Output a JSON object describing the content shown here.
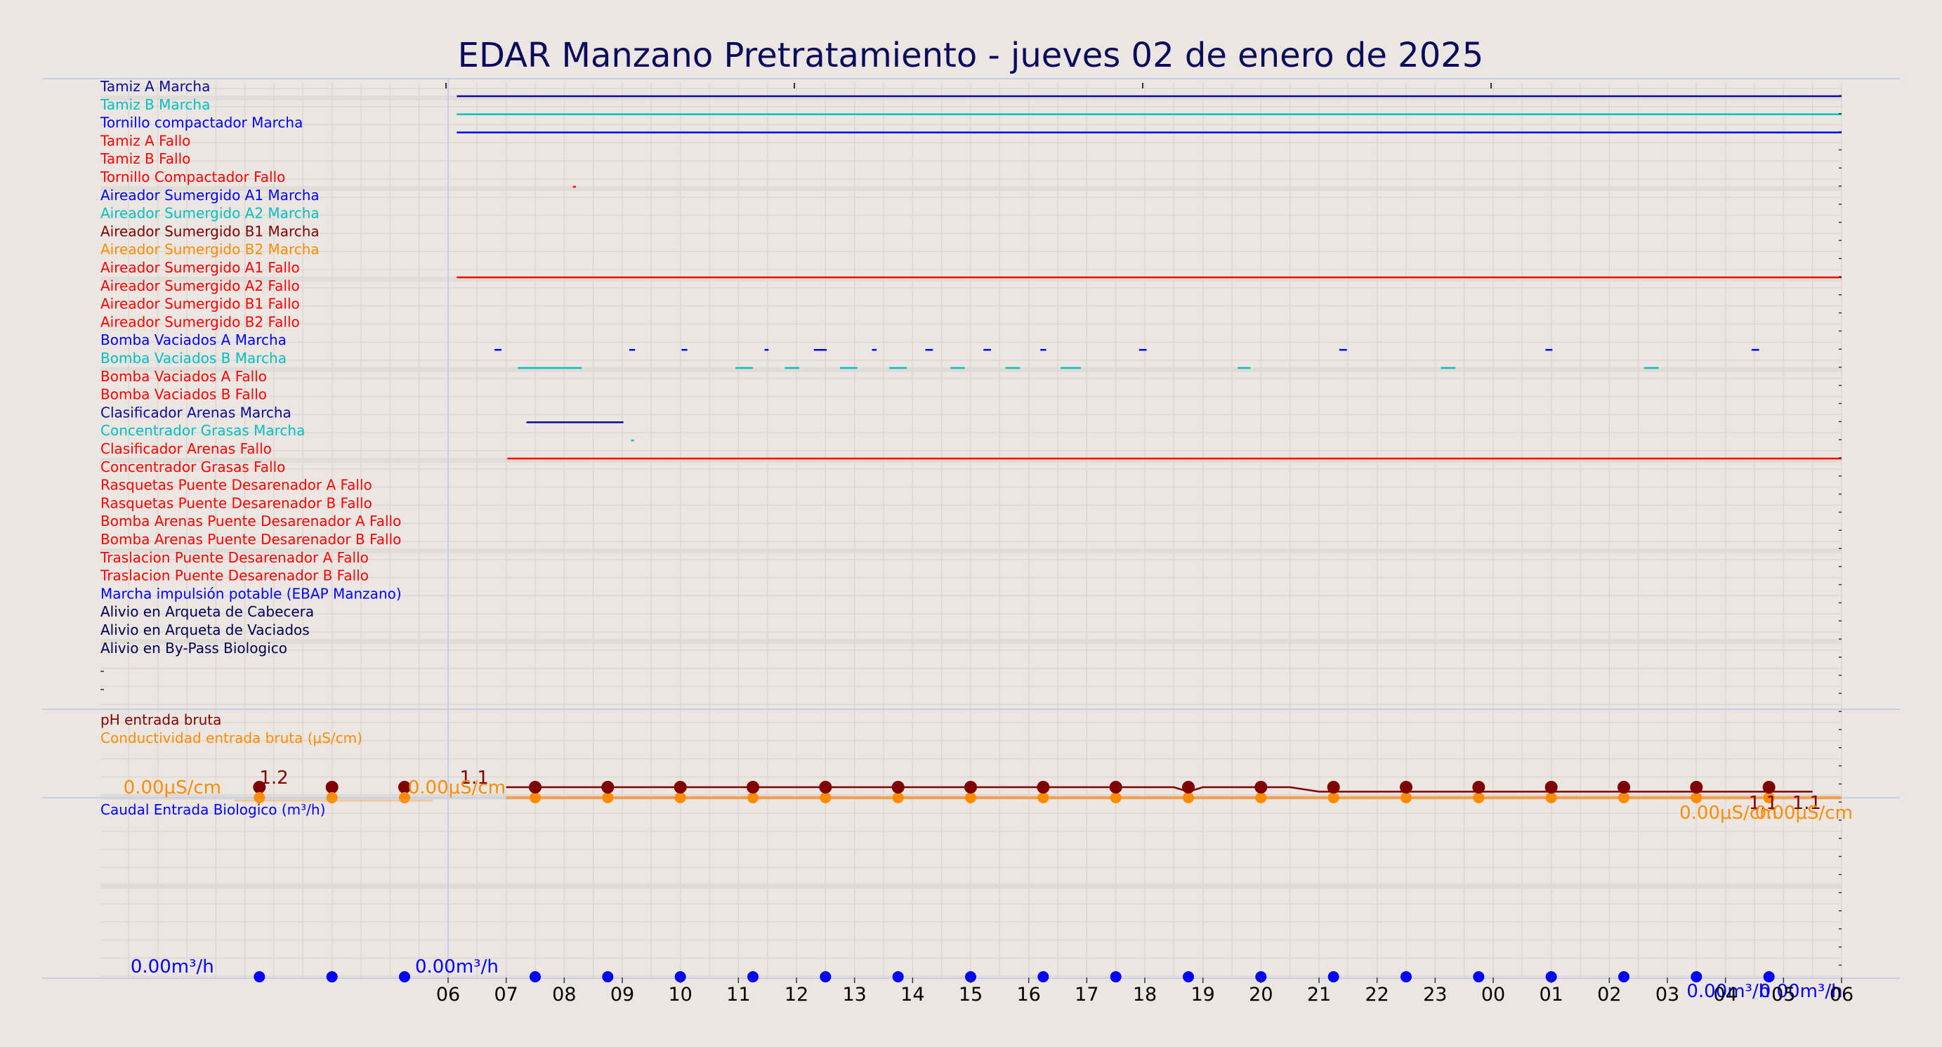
{
  "title": "EDAR Manzano Pretratamiento   -   jueves 02 de enero de 2025",
  "colors": {
    "background": "#ebe6e1",
    "title": "#0b0b5e",
    "navy": "#0a0a9a",
    "blue": "#0000ff",
    "cyan": "#00c0c0",
    "red": "#ff0000",
    "darkred": "#800000",
    "orange": "#ff8c00",
    "darknavy": "#000050",
    "grid": "#dcd7d3",
    "band": "#e0dcd8",
    "separator": "#c8cde6"
  },
  "chart_data": {
    "type": "line",
    "x_ticks": [
      "06",
      "07",
      "08",
      "09",
      "10",
      "11",
      "12",
      "13",
      "14",
      "15",
      "16",
      "17",
      "18",
      "19",
      "20",
      "21",
      "22",
      "23",
      "00",
      "01",
      "02",
      "03",
      "04",
      "05",
      "06"
    ],
    "x_range_hours": [
      6,
      30
    ],
    "digital_signals": [
      {
        "name": "Tamiz A Marcha",
        "color": "#0a0a9a",
        "on": [
          [
            6.15,
            30
          ]
        ]
      },
      {
        "name": "Tamiz B Marcha",
        "color": "#00c0c0",
        "on": [
          [
            6.15,
            30
          ]
        ]
      },
      {
        "name": "Tornillo compactador Marcha",
        "color": "#0000ff",
        "on": [
          [
            6.15,
            30
          ]
        ]
      },
      {
        "name": "Tamiz A Fallo",
        "color": "#ff0000",
        "on": []
      },
      {
        "name": "Tamiz B Fallo",
        "color": "#ff0000",
        "on": []
      },
      {
        "name": "Tornillo Compactador Fallo",
        "color": "#ff0000",
        "on": [
          [
            8.15,
            8.2
          ]
        ]
      },
      {
        "name": "Aireador Sumergido A1 Marcha",
        "color": "#0000ff",
        "on": []
      },
      {
        "name": "Aireador Sumergido A2 Marcha",
        "color": "#00c0c0",
        "on": []
      },
      {
        "name": "Aireador Sumergido B1 Marcha",
        "color": "#800000",
        "on": []
      },
      {
        "name": "Aireador Sumergido B2 Marcha",
        "color": "#ff8c00",
        "on": []
      },
      {
        "name": "Aireador Sumergido A1 Fallo",
        "color": "#ff0000",
        "on": [
          [
            6.15,
            30
          ]
        ]
      },
      {
        "name": "Aireador Sumergido A2 Fallo",
        "color": "#ff0000",
        "on": []
      },
      {
        "name": "Aireador Sumergido B1 Fallo",
        "color": "#ff0000",
        "on": []
      },
      {
        "name": "Aireador Sumergido B2 Fallo",
        "color": "#ff0000",
        "on": []
      },
      {
        "name": "Bomba Vaciados A Marcha",
        "color": "#0000ff",
        "on": [
          [
            6.8,
            6.92
          ],
          [
            9.12,
            9.22
          ],
          [
            10.02,
            10.12
          ],
          [
            11.45,
            11.52
          ],
          [
            12.3,
            12.52
          ],
          [
            13.3,
            13.38
          ],
          [
            14.22,
            14.35
          ],
          [
            15.22,
            15.35
          ],
          [
            16.2,
            16.3
          ],
          [
            17.9,
            18.03
          ],
          [
            21.35,
            21.48
          ],
          [
            24.9,
            25.02
          ],
          [
            28.45,
            28.58
          ]
        ]
      },
      {
        "name": "Bomba Vaciados B Marcha",
        "color": "#00c0c0",
        "on": [
          [
            7.2,
            8.3
          ],
          [
            10.95,
            11.25
          ],
          [
            11.8,
            12.05
          ],
          [
            12.75,
            13.05
          ],
          [
            13.6,
            13.9
          ],
          [
            14.65,
            14.9
          ],
          [
            15.6,
            15.85
          ],
          [
            16.55,
            16.9
          ],
          [
            19.6,
            19.82
          ],
          [
            23.1,
            23.35
          ],
          [
            26.6,
            26.85
          ]
        ]
      },
      {
        "name": "Bomba Vaciados A Fallo",
        "color": "#ff0000",
        "on": []
      },
      {
        "name": "Bomba Vaciados B Fallo",
        "color": "#ff0000",
        "on": []
      },
      {
        "name": "Clasificador Arenas Marcha",
        "color": "#0a0a9a",
        "on": [
          [
            7.35,
            9.02
          ]
        ]
      },
      {
        "name": "Concentrador Grasas Marcha",
        "color": "#00c0c0",
        "on": [
          [
            9.15,
            9.2
          ]
        ]
      },
      {
        "name": "Clasificador Arenas Fallo",
        "color": "#ff0000",
        "on": [
          [
            7.02,
            30
          ]
        ]
      },
      {
        "name": "Concentrador Grasas Fallo",
        "color": "#ff0000",
        "on": []
      },
      {
        "name": "Rasquetas Puente Desarenador A Fallo",
        "color": "#ff0000",
        "on": []
      },
      {
        "name": "Rasquetas Puente Desarenador B Fallo",
        "color": "#ff0000",
        "on": []
      },
      {
        "name": "Bomba Arenas Puente Desarenador A Fallo",
        "color": "#ff0000",
        "on": []
      },
      {
        "name": "Bomba Arenas Puente Desarenador B Fallo",
        "color": "#ff0000",
        "on": []
      },
      {
        "name": "Traslacion Puente Desarenador A Fallo",
        "color": "#ff0000",
        "on": []
      },
      {
        "name": "Traslacion Puente Desarenador B Fallo",
        "color": "#ff0000",
        "on": []
      },
      {
        "name": "Marcha impulsión potable (EBAP Manzano)",
        "color": "#0000ff",
        "on": []
      },
      {
        "name": "Alivio en Arqueta de Cabecera",
        "color": "#000050",
        "on": []
      },
      {
        "name": "Alivio en Arqueta de Vaciados",
        "color": "#000050",
        "on": []
      },
      {
        "name": "Alivio en By-Pass Biologico",
        "color": "#000050",
        "on": []
      }
    ],
    "analog_series": [
      {
        "name": "pH entrada bruta",
        "color": "#800000",
        "marker_hours": [
          7.5,
          8.75,
          10.0,
          11.25,
          12.5,
          13.75,
          15.0,
          16.25,
          17.5,
          18.75,
          20.0,
          21.25,
          22.5,
          23.75,
          25.0,
          26.25,
          27.5,
          28.75
        ],
        "line_x": [
          7.0,
          18.5,
          18.75,
          19.0,
          20.5,
          21.0,
          29.5
        ],
        "line_y": [
          1.1,
          1.1,
          1.08,
          1.1,
          1.1,
          1.08,
          1.08
        ],
        "labels": [
          {
            "text": "1.2",
            "x": 3.0
          },
          {
            "text": "1.1",
            "x": 6.45
          },
          {
            "text": "1.1",
            "x": 28.65
          },
          {
            "text": "1.1",
            "x": 29.4
          }
        ]
      },
      {
        "name": "Conductividad entrada bruta (µS/cm)",
        "color": "#ff8c00",
        "marker_hours": [
          7.5,
          8.75,
          10.0,
          11.25,
          12.5,
          13.75,
          15.0,
          16.25,
          17.5,
          18.75,
          20.0,
          21.25,
          22.5,
          23.75,
          25.0,
          26.25,
          27.5,
          28.75
        ],
        "value": 0.0,
        "labels": [
          {
            "text": "0.00µS/cm",
            "x": 1.25
          },
          {
            "text": "0.00µS/cm",
            "x": 6.15
          },
          {
            "text": "0.00µS/cm",
            "x": 28.05
          },
          {
            "text": "0.00µS/cm",
            "x": 29.35
          }
        ]
      },
      {
        "name": "Caudal Entrada Biologico (m³/h)",
        "color": "#0000ff",
        "marker_hours": [
          7.5,
          8.75,
          10.0,
          11.25,
          12.5,
          13.75,
          15.0,
          16.25,
          17.5,
          18.75,
          20.0,
          21.25,
          22.5,
          23.75,
          25.0,
          26.25,
          27.5,
          28.75
        ],
        "value": 0.0,
        "labels": [
          {
            "text": "0.00m³/h",
            "x": 1.25
          },
          {
            "text": "0.00m³/h",
            "x": 6.15
          },
          {
            "text": "0.00m³/h",
            "x": 28.05
          },
          {
            "text": "0.00m³/h",
            "x": 29.3
          }
        ]
      }
    ],
    "pre_axis_markers": {
      "hours": [
        2.75,
        4.0,
        5.25
      ],
      "ph_label": "1.2"
    }
  }
}
